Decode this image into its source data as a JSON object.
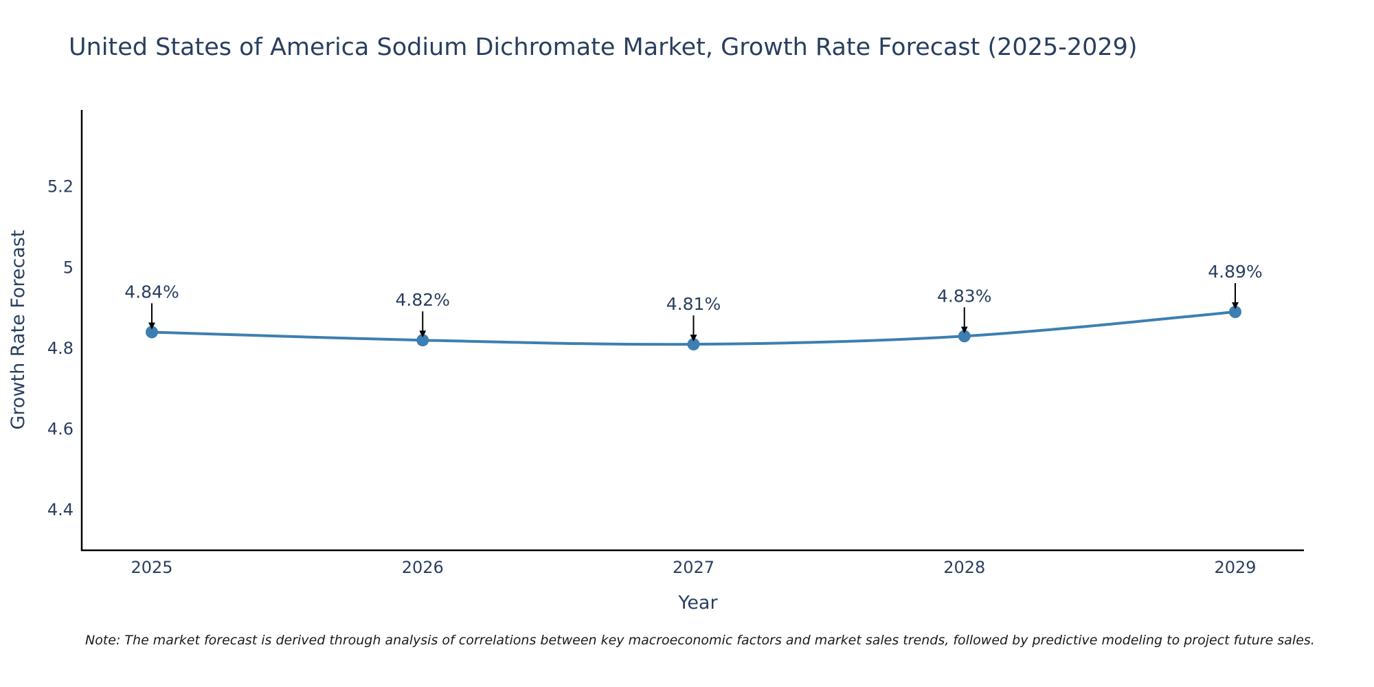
{
  "chart_data": {
    "type": "line",
    "title": "United States of America Sodium Dichromate Market, Growth Rate Forecast (2025-2029)",
    "xlabel": "Year",
    "ylabel": "Growth Rate Forecast",
    "categories": [
      "2025",
      "2026",
      "2027",
      "2028",
      "2029"
    ],
    "values": [
      4.84,
      4.82,
      4.81,
      4.83,
      4.89
    ],
    "data_labels": [
      "4.84%",
      "4.82%",
      "4.81%",
      "4.83%",
      "4.89%"
    ],
    "ylim": [
      4.3,
      5.39
    ],
    "yticks": [
      4.4,
      4.6,
      4.8,
      5,
      5.2
    ],
    "ytick_labels": [
      "4.4",
      "4.6",
      "4.8",
      "5",
      "5.2"
    ],
    "grid": false,
    "line_color": "#3d7fb1",
    "marker_color": "#3d7fb1"
  },
  "note": "Note: The market forecast is derived through analysis of correlations between key macroeconomic factors and market sales trends, followed by predictive modeling to project future sales."
}
